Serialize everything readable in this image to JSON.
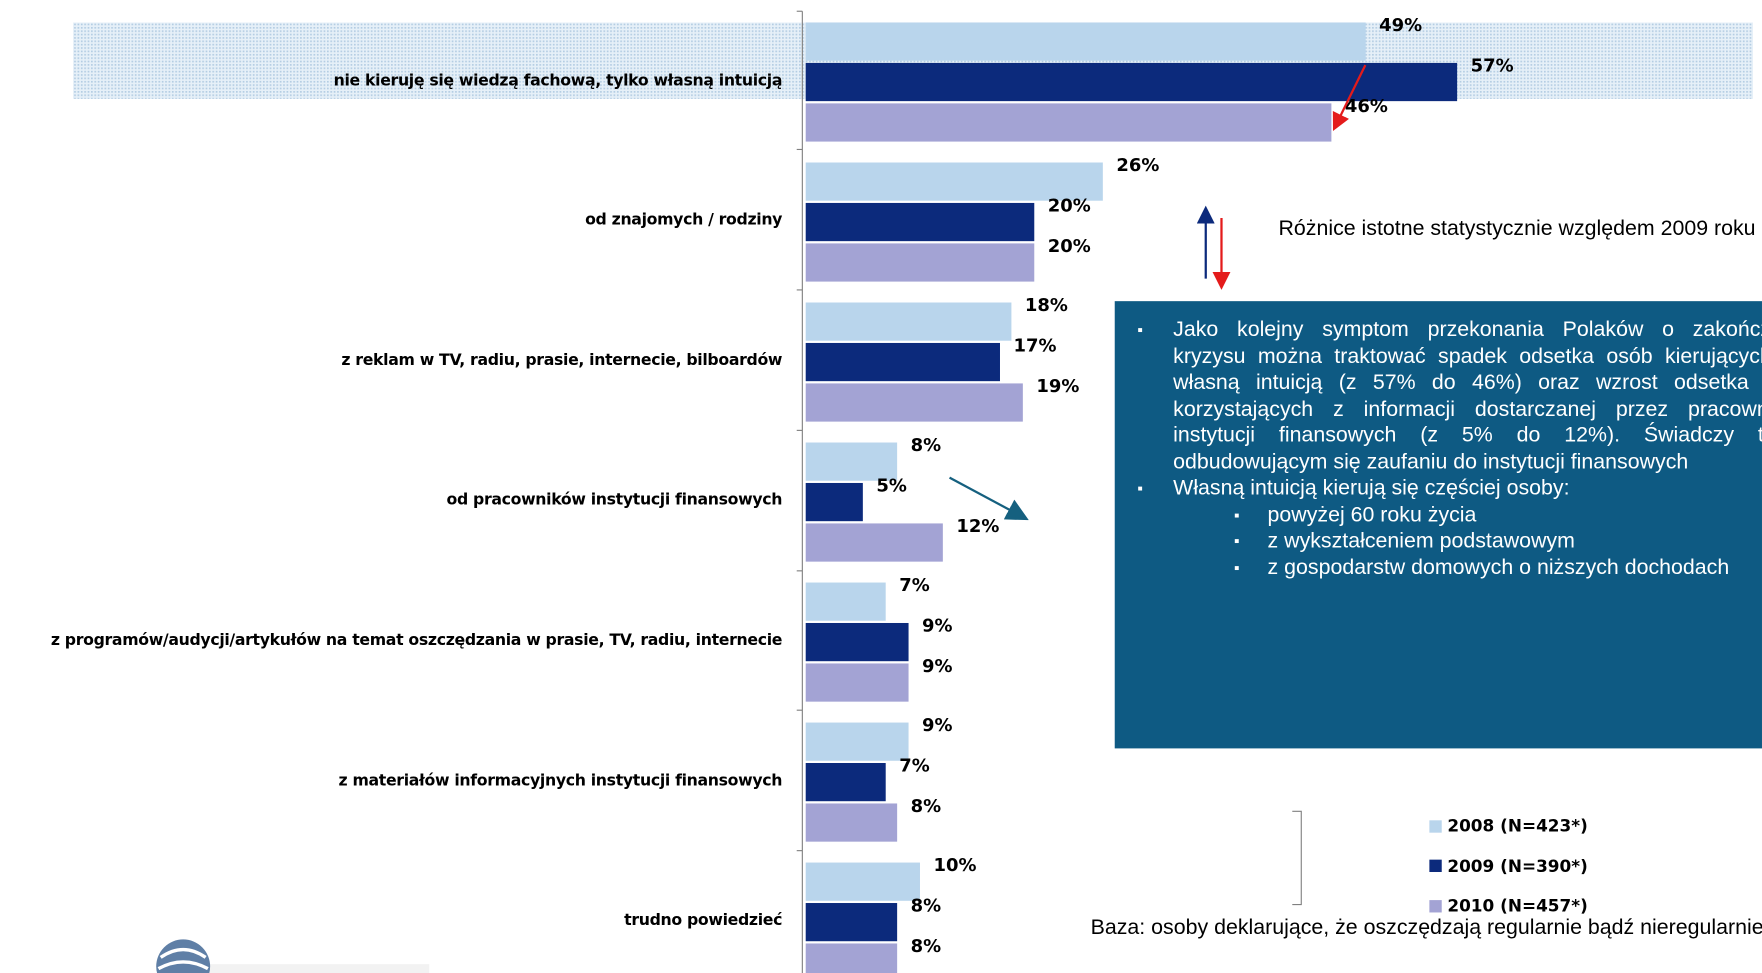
{
  "chart_data": {
    "type": "barh",
    "categories": [
      "nie kieruję się wiedzą fachową, tylko własną intuicją",
      "od znajomych / rodziny",
      "z reklam w TV, radiu, prasie, internecie, bilboardów",
      "od pracowników instytucji finansowych",
      "z programów/audycji/artykułów  na temat oszczędzania w prasie, TV, radiu, internecie",
      "z materiałów informacyjnych instytucji finansowych",
      "trudno powiedzieć"
    ],
    "series": [
      {
        "name": "2008 (N=423*)",
        "color": "#b9d5ec",
        "values": [
          49,
          26,
          18,
          8,
          7,
          9,
          10
        ],
        "value_labels": [
          "49%",
          "26%",
          "18%",
          "8%",
          "7%",
          "9%",
          "10%"
        ]
      },
      {
        "name": "2009 (N=390*)",
        "color": "#0c2a7c",
        "values": [
          57,
          20,
          17,
          5,
          9,
          7,
          8
        ],
        "value_labels": [
          "57%",
          "20%",
          "17%",
          "5%",
          "9%",
          "7%",
          "8%"
        ]
      },
      {
        "name": "2010 (N=457*)",
        "color": "#a3a3d4",
        "values": [
          46,
          20,
          19,
          12,
          9,
          8,
          8
        ],
        "value_labels": [
          "46%",
          "20%",
          "19%",
          "12%",
          "9%",
          "8%",
          "8%"
        ]
      }
    ],
    "xlim": [
      0,
      100
    ],
    "significance_note": "Różnice istotne statystycznie względem 2009 roku",
    "note_box": {
      "items": [
        "Jako kolejny symptom przekonania Polaków o zakończeniu kryzysu można traktować spadek odsetka osób kierujących się własną intuicją (z 57% do 46%) oraz wzrost odsetka osób korzystających z informacji dostarczanej przez pracowników instytucji finansowych (z 5% do 12%). Świadczy to o odbudowującym się zaufaniu do instytucji finansowych",
        "Własną intuicją kierują się częściej osoby:"
      ],
      "subitems": [
        "powyżej 60 roku życia",
        "z wykształceniem podstawowym",
        "z gospodarstw domowych o niższych dochodach"
      ]
    },
    "base_note": "Baza: osoby deklarujące, że oszczędzają regularnie bądź nieregularnie"
  }
}
